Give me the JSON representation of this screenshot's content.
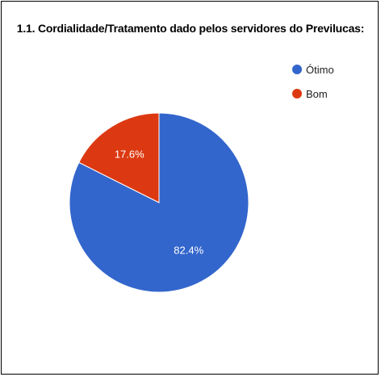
{
  "chart_data": {
    "type": "pie",
    "title": "1.1. Cordialidade/Tratamento dado pelos servidores do Previlucas:",
    "slices": [
      {
        "label": "Ótimo",
        "value": 82.4,
        "display": "82.4%",
        "color": "#3366cc"
      },
      {
        "label": "Bom",
        "value": 17.6,
        "display": "17.6%",
        "color": "#dc3912"
      }
    ],
    "legend_position": "right"
  }
}
